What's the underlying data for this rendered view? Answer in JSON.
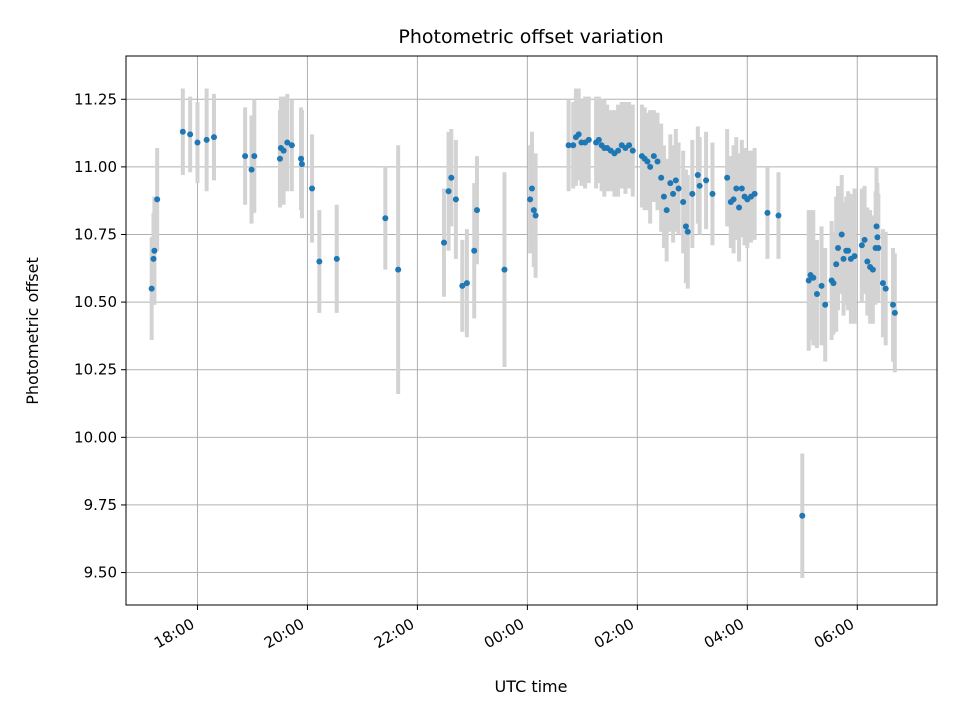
{
  "chart_data": {
    "type": "scatter",
    "title": "Photometric offset variation",
    "xlabel": "UTC time",
    "ylabel": "Photometric offset",
    "x_axis_kind": "time",
    "x_tick_labels": [
      "18:00",
      "20:00",
      "22:00",
      "00:00",
      "02:00",
      "04:00",
      "06:00"
    ],
    "x_tick_hours": [
      18,
      20,
      22,
      24,
      26,
      28,
      30
    ],
    "xlim_hours": [
      16.7,
      31.45
    ],
    "y_ticks": [
      9.5,
      9.75,
      10.0,
      10.25,
      10.5,
      10.75,
      11.0,
      11.25
    ],
    "y_tick_labels": [
      "9.50",
      "9.75",
      "10.00",
      "10.25",
      "10.50",
      "10.75",
      "11.00",
      "11.25"
    ],
    "ylim": [
      9.38,
      11.41
    ],
    "grid": true,
    "marker_color": "#1f77b4",
    "errorbar_color": "#d3d3d3",
    "series": [
      {
        "points": [
          {
            "time": "17:10",
            "y": 10.55,
            "err": 0.19
          },
          {
            "time": "17:12",
            "y": 10.66,
            "err": 0.17
          },
          {
            "time": "17:13",
            "y": 10.69,
            "err": 0.2
          },
          {
            "time": "17:16",
            "y": 10.88,
            "err": 0.19
          },
          {
            "time": "17:44",
            "y": 11.13,
            "err": 0.16
          },
          {
            "time": "17:52",
            "y": 11.12,
            "err": 0.14
          },
          {
            "time": "18:00",
            "y": 11.09,
            "err": 0.15
          },
          {
            "time": "18:10",
            "y": 11.1,
            "err": 0.19
          },
          {
            "time": "18:18",
            "y": 11.11,
            "err": 0.16
          },
          {
            "time": "18:52",
            "y": 11.04,
            "err": 0.18
          },
          {
            "time": "18:59",
            "y": 10.99,
            "err": 0.2
          },
          {
            "time": "19:02",
            "y": 11.04,
            "err": 0.21
          },
          {
            "time": "19:30",
            "y": 11.03,
            "err": 0.18
          },
          {
            "time": "19:31",
            "y": 11.07,
            "err": 0.19
          },
          {
            "time": "19:34",
            "y": 11.06,
            "err": 0.2
          },
          {
            "time": "19:38",
            "y": 11.09,
            "err": 0.18
          },
          {
            "time": "19:43",
            "y": 11.08,
            "err": 0.17
          },
          {
            "time": "19:53",
            "y": 11.03,
            "err": 0.19
          },
          {
            "time": "19:54",
            "y": 11.01,
            "err": 0.2
          },
          {
            "time": "20:05",
            "y": 10.92,
            "err": 0.2
          },
          {
            "time": "20:13",
            "y": 10.65,
            "err": 0.19
          },
          {
            "time": "20:32",
            "y": 10.66,
            "err": 0.2
          },
          {
            "time": "21:25",
            "y": 10.81,
            "err": 0.19
          },
          {
            "time": "21:39",
            "y": 10.62,
            "err": 0.46
          },
          {
            "time": "22:29",
            "y": 10.72,
            "err": 0.2
          },
          {
            "time": "22:34",
            "y": 10.91,
            "err": 0.22
          },
          {
            "time": "22:37",
            "y": 10.96,
            "err": 0.18
          },
          {
            "time": "22:42",
            "y": 10.88,
            "err": 0.22
          },
          {
            "time": "22:49",
            "y": 10.56,
            "err": 0.17
          },
          {
            "time": "22:54",
            "y": 10.57,
            "err": 0.2
          },
          {
            "time": "23:02",
            "y": 10.69,
            "err": 0.25
          },
          {
            "time": "23:05",
            "y": 10.84,
            "err": 0.2
          },
          {
            "time": "23:35",
            "y": 10.62,
            "err": 0.36
          },
          {
            "time": "24:03",
            "y": 10.88,
            "err": 0.2
          },
          {
            "time": "24:05",
            "y": 10.92,
            "err": 0.21
          },
          {
            "time": "24:07",
            "y": 10.84,
            "err": 0.21
          },
          {
            "time": "24:09",
            "y": 10.82,
            "err": 0.23
          },
          {
            "time": "24:45",
            "y": 11.08,
            "err": 0.17
          },
          {
            "time": "24:50",
            "y": 11.08,
            "err": 0.16
          },
          {
            "time": "24:53",
            "y": 11.11,
            "err": 0.18
          },
          {
            "time": "24:56",
            "y": 11.12,
            "err": 0.17
          },
          {
            "time": "24:59",
            "y": 11.09,
            "err": 0.16
          },
          {
            "time": "25:03",
            "y": 11.09,
            "err": 0.17
          },
          {
            "time": "25:07",
            "y": 11.1,
            "err": 0.16
          },
          {
            "time": "25:15",
            "y": 11.09,
            "err": 0.17
          },
          {
            "time": "25:18",
            "y": 11.1,
            "err": 0.16
          },
          {
            "time": "25:21",
            "y": 11.08,
            "err": 0.17
          },
          {
            "time": "25:24",
            "y": 11.07,
            "err": 0.18
          },
          {
            "time": "25:27",
            "y": 11.07,
            "err": 0.16
          },
          {
            "time": "25:31",
            "y": 11.06,
            "err": 0.15
          },
          {
            "time": "25:35",
            "y": 11.05,
            "err": 0.16
          },
          {
            "time": "25:39",
            "y": 11.06,
            "err": 0.17
          },
          {
            "time": "25:43",
            "y": 11.08,
            "err": 0.16
          },
          {
            "time": "25:47",
            "y": 11.07,
            "err": 0.17
          },
          {
            "time": "25:51",
            "y": 11.08,
            "err": 0.16
          },
          {
            "time": "25:55",
            "y": 11.06,
            "err": 0.17
          },
          {
            "time": "26:05",
            "y": 11.04,
            "err": 0.19
          },
          {
            "time": "26:08",
            "y": 11.03,
            "err": 0.19
          },
          {
            "time": "26:11",
            "y": 11.02,
            "err": 0.18
          },
          {
            "time": "26:14",
            "y": 11.0,
            "err": 0.21
          },
          {
            "time": "26:18",
            "y": 11.04,
            "err": 0.17
          },
          {
            "time": "26:22",
            "y": 11.02,
            "err": 0.18
          },
          {
            "time": "26:26",
            "y": 10.96,
            "err": 0.2
          },
          {
            "time": "26:29",
            "y": 10.89,
            "err": 0.19
          },
          {
            "time": "26:32",
            "y": 10.84,
            "err": 0.19
          },
          {
            "time": "26:36",
            "y": 10.94,
            "err": 0.18
          },
          {
            "time": "26:39",
            "y": 10.9,
            "err": 0.18
          },
          {
            "time": "26:42",
            "y": 10.95,
            "err": 0.19
          },
          {
            "time": "26:45",
            "y": 10.92,
            "err": 0.17
          },
          {
            "time": "26:50",
            "y": 10.87,
            "err": 0.19
          },
          {
            "time": "26:53",
            "y": 10.78,
            "err": 0.21
          },
          {
            "time": "26:55",
            "y": 10.76,
            "err": 0.21
          },
          {
            "time": "27:00",
            "y": 10.9,
            "err": 0.2
          },
          {
            "time": "27:06",
            "y": 10.97,
            "err": 0.18
          },
          {
            "time": "27:08",
            "y": 10.93,
            "err": 0.18
          },
          {
            "time": "27:15",
            "y": 10.95,
            "err": 0.18
          },
          {
            "time": "27:22",
            "y": 10.9,
            "err": 0.19
          },
          {
            "time": "27:38",
            "y": 10.96,
            "err": 0.18
          },
          {
            "time": "27:42",
            "y": 10.87,
            "err": 0.17
          },
          {
            "time": "27:45",
            "y": 10.88,
            "err": 0.2
          },
          {
            "time": "27:48",
            "y": 10.92,
            "err": 0.19
          },
          {
            "time": "27:51",
            "y": 10.85,
            "err": 0.2
          },
          {
            "time": "27:54",
            "y": 10.92,
            "err": 0.18
          },
          {
            "time": "27:57",
            "y": 10.89,
            "err": 0.18
          },
          {
            "time": "28:00",
            "y": 10.88,
            "err": 0.18
          },
          {
            "time": "28:04",
            "y": 10.89,
            "err": 0.17
          },
          {
            "time": "28:08",
            "y": 10.9,
            "err": 0.17
          },
          {
            "time": "28:22",
            "y": 10.83,
            "err": 0.17
          },
          {
            "time": "28:34",
            "y": 10.82,
            "err": 0.16
          },
          {
            "time": "29:00",
            "y": 9.71,
            "err": 0.23
          },
          {
            "time": "29:07",
            "y": 10.58,
            "err": 0.26
          },
          {
            "time": "29:09",
            "y": 10.6,
            "err": 0.24
          },
          {
            "time": "29:12",
            "y": 10.59,
            "err": 0.25
          },
          {
            "time": "29:16",
            "y": 10.53,
            "err": 0.2
          },
          {
            "time": "29:21",
            "y": 10.56,
            "err": 0.22
          },
          {
            "time": "29:25",
            "y": 10.49,
            "err": 0.21
          },
          {
            "time": "29:32",
            "y": 10.58,
            "err": 0.22
          },
          {
            "time": "29:34",
            "y": 10.57,
            "err": 0.19
          },
          {
            "time": "29:37",
            "y": 10.64,
            "err": 0.25
          },
          {
            "time": "29:39",
            "y": 10.7,
            "err": 0.23
          },
          {
            "time": "29:43",
            "y": 10.75,
            "err": 0.22
          },
          {
            "time": "29:45",
            "y": 10.66,
            "err": 0.21
          },
          {
            "time": "29:48",
            "y": 10.69,
            "err": 0.2
          },
          {
            "time": "29:50",
            "y": 10.69,
            "err": 0.22
          },
          {
            "time": "29:53",
            "y": 10.66,
            "err": 0.24
          },
          {
            "time": "29:57",
            "y": 10.67,
            "err": 0.25
          },
          {
            "time": "30:05",
            "y": 10.71,
            "err": 0.21
          },
          {
            "time": "30:08",
            "y": 10.73,
            "err": 0.2
          },
          {
            "time": "30:11",
            "y": 10.65,
            "err": 0.2
          },
          {
            "time": "30:14",
            "y": 10.63,
            "err": 0.21
          },
          {
            "time": "30:17",
            "y": 10.62,
            "err": 0.2
          },
          {
            "time": "30:20",
            "y": 10.7,
            "err": 0.21
          },
          {
            "time": "30:21",
            "y": 10.78,
            "err": 0.22
          },
          {
            "time": "30:22",
            "y": 10.74,
            "err": 0.2
          },
          {
            "time": "30:23",
            "y": 10.7,
            "err": 0.2
          },
          {
            "time": "30:28",
            "y": 10.57,
            "err": 0.2
          },
          {
            "time": "30:31",
            "y": 10.55,
            "err": 0.21
          },
          {
            "time": "30:39",
            "y": 10.49,
            "err": 0.21
          },
          {
            "time": "30:41",
            "y": 10.46,
            "err": 0.22
          }
        ]
      }
    ]
  }
}
